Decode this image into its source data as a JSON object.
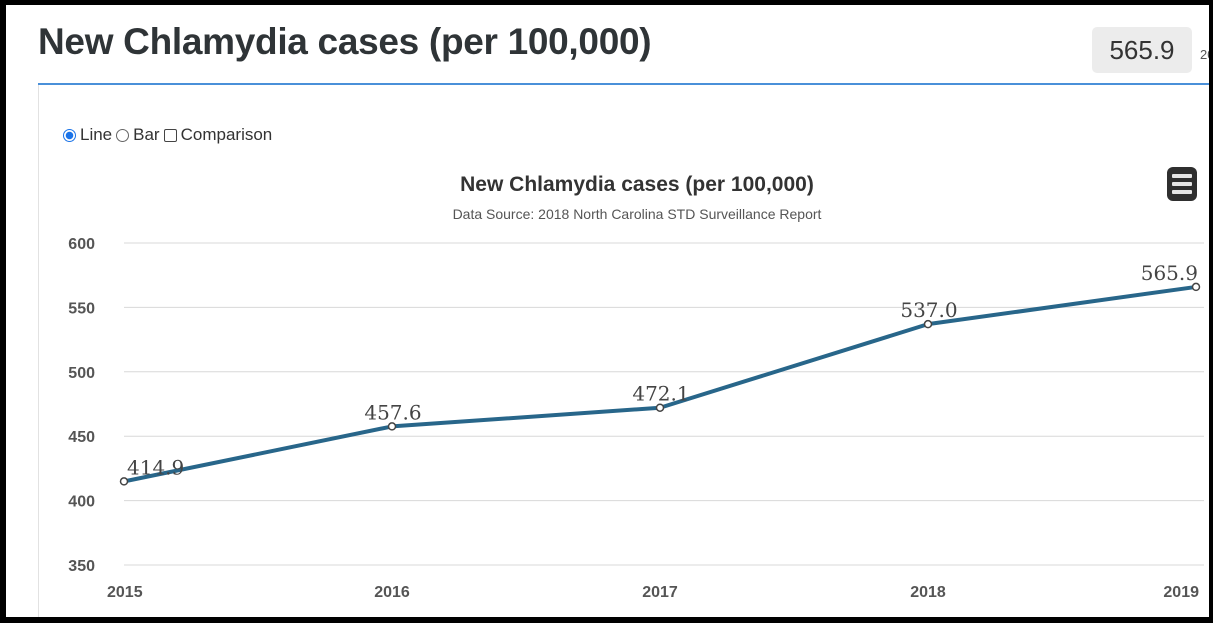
{
  "header": {
    "title": "New Chlamydia cases (per 100,000)",
    "current_value": "565.9",
    "current_year_stub": "20"
  },
  "chart_type_options": {
    "line": "Line",
    "bar": "Bar",
    "comparison": "Comparison",
    "selected": "Line"
  },
  "icons": {
    "menu": "hamburger-menu-icon"
  },
  "colors": {
    "series": "#28668a",
    "accent_rule": "#4a90d9",
    "radio_selected": "#1a73e8"
  },
  "chart_data": {
    "type": "line",
    "title": "New Chlamydia cases (per 100,000)",
    "subtitle": "Data Source: 2018 North Carolina STD Surveillance Report",
    "xlabel": "",
    "ylabel": "",
    "categories": [
      "2015",
      "2016",
      "2017",
      "2018",
      "2019"
    ],
    "series": [
      {
        "values": [
          414.9,
          457.6,
          472.1,
          537.0,
          565.9
        ]
      }
    ],
    "data_labels": [
      "414.9",
      "457.6",
      "472.1",
      "537.0",
      "565.9"
    ],
    "yticks": [
      350,
      400,
      450,
      500,
      550,
      600
    ],
    "ylim": [
      350,
      600
    ],
    "grid": true,
    "legend": "none"
  }
}
